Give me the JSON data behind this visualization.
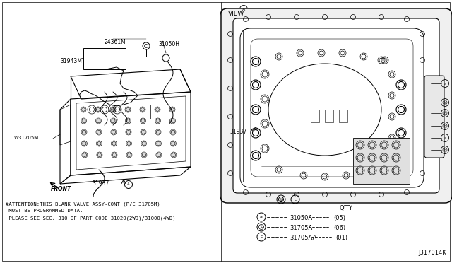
{
  "bg_color": "#ffffff",
  "fig_width": 6.4,
  "fig_height": 3.72,
  "dpi": 100,
  "attention_line1": "#ATTENTION;THIS BLANK VALVE ASSY-CONT (P/C 31705M)",
  "attention_line2": " MUST BE PROGRAMMED DATA.",
  "attention_line3": " PLEASE SEE SEC. 310 OF PART CODE 31020(2WD)/31000(4WD)",
  "part_number": "J317014K",
  "qty_title": "Q'TY",
  "label_24361M": "24361M",
  "label_31050H": "31050H",
  "label_31943M": "31943M",
  "label_W31705M": "W31705M",
  "label_31937": "31937",
  "label_31937r": "31937",
  "label_FRONT": "FRONT",
  "view_label": "VIEW",
  "legend_items": [
    {
      "symbol": "a",
      "part": "31050A",
      "qty": "(05)",
      "inner": false
    },
    {
      "symbol": "b",
      "part": "31705A",
      "qty": "(06)",
      "inner": true
    },
    {
      "symbol": "c",
      "part": "31705AA",
      "qty": "(01)",
      "inner": false
    }
  ]
}
